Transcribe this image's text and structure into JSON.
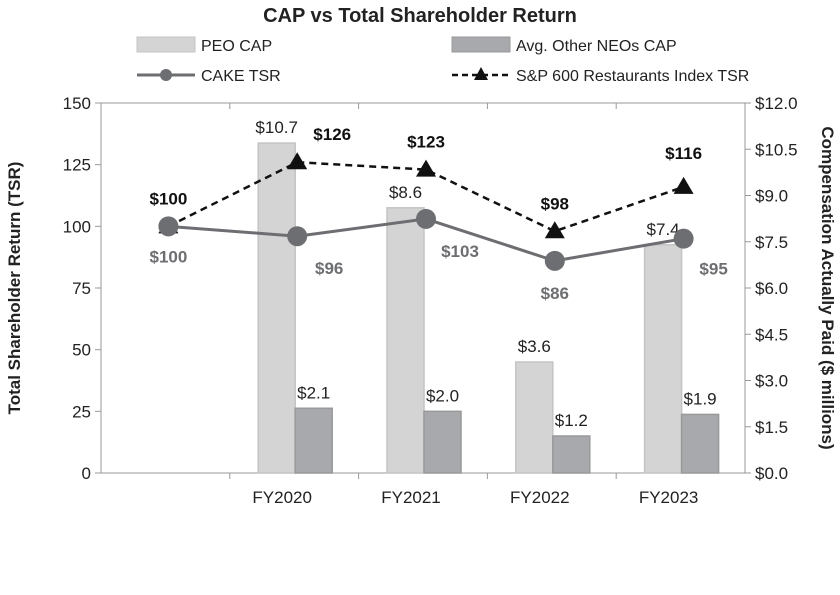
{
  "chart_data": {
    "type": "bar",
    "title": "CAP vs Total Shareholder Return",
    "categories": [
      "",
      "FY2020",
      "FY2021",
      "FY2022",
      "FY2023"
    ],
    "ylabel": "Total Shareholder Return (TSR)",
    "y2label": "Compensation Actually Paid ($ millions)",
    "ylim": [
      0,
      150
    ],
    "y2lim": [
      0,
      12
    ],
    "yticks": [
      "0",
      "25",
      "50",
      "75",
      "100",
      "125",
      "150"
    ],
    "y2ticks": [
      "$0.0",
      "$1.5",
      "$3.0",
      "$4.5",
      "$6.0",
      "$7.5",
      "$9.0",
      "$10.5",
      "$12.0"
    ],
    "legend_position": "top",
    "series": [
      {
        "name": "PEO CAP",
        "kind": "bar",
        "axis": "right",
        "color": "#d4d4d4",
        "values": [
          null,
          10.7,
          8.6,
          3.6,
          7.4
        ],
        "labels": [
          "",
          "$10.7",
          "$8.6",
          "$3.6",
          "$7.4"
        ]
      },
      {
        "name": "Avg. Other NEOs CAP",
        "kind": "bar",
        "axis": "right",
        "color": "#a7a9ac",
        "values": [
          null,
          2.1,
          2.0,
          1.2,
          1.9
        ],
        "labels": [
          "",
          "$2.1",
          "$2.0",
          "$1.2",
          "$1.9"
        ]
      },
      {
        "name": "CAKE TSR",
        "kind": "line",
        "axis": "left",
        "color": "#6d6e71",
        "values": [
          100,
          96,
          103,
          86,
          95
        ],
        "labels": [
          "$100",
          "$96",
          "$103",
          "$86",
          "$95"
        ]
      },
      {
        "name": "S&P 600 Restaurants Index TSR",
        "kind": "line-dashed",
        "axis": "left",
        "color": "#111111",
        "values": [
          100,
          126,
          123,
          98,
          116
        ],
        "labels": [
          "$100",
          "$126",
          "$123",
          "$98",
          "$116"
        ]
      }
    ]
  }
}
